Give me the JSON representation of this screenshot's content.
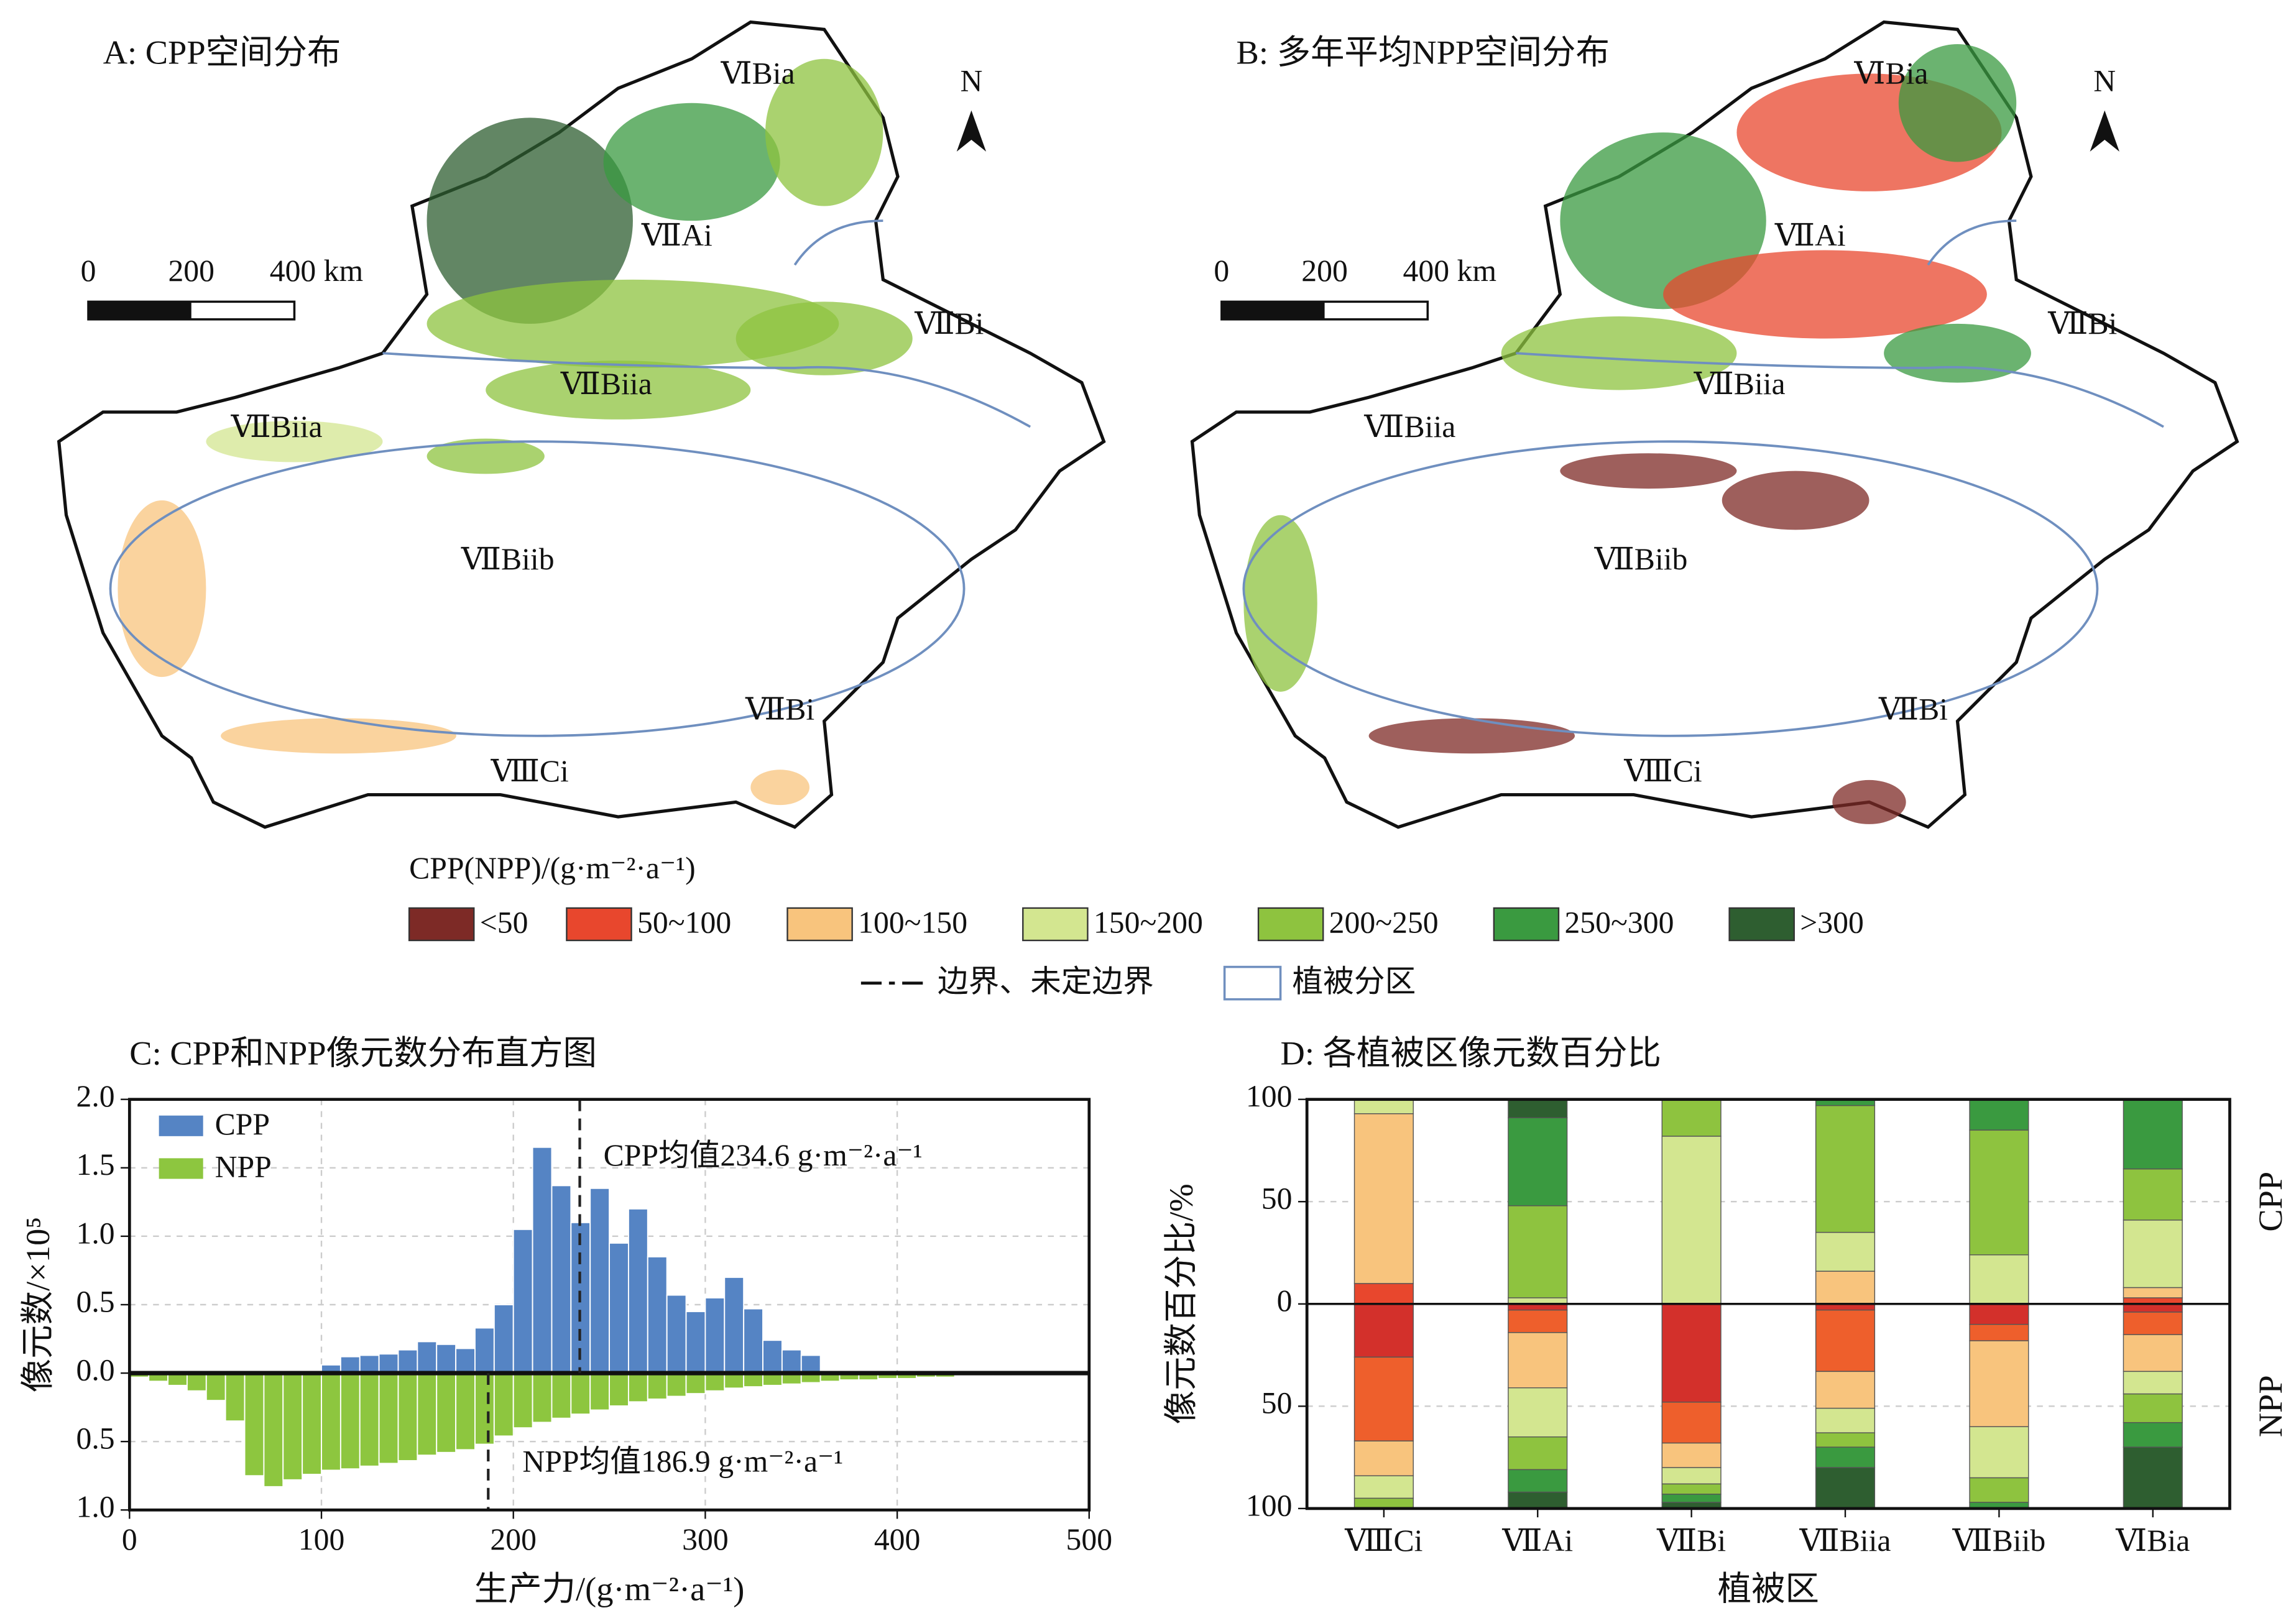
{
  "maps": [
    {
      "title": "A: CPP空间分布",
      "region_labels": [
        "ⅥBia",
        "ⅦAi",
        "ⅦBi",
        "ⅦBiia",
        "ⅦBiia",
        "ⅦBiib",
        "ⅦBi",
        "ⅧCi"
      ],
      "scale_labels": [
        "0",
        "200",
        "400 km"
      ],
      "north": "N"
    },
    {
      "title": "B: 多年平均NPP空间分布",
      "region_labels": [
        "ⅥBia",
        "ⅦAi",
        "ⅦBi",
        "ⅦBiia",
        "ⅦBiia",
        "ⅦBiib",
        "ⅦBi",
        "ⅧCi"
      ],
      "scale_labels": [
        "0",
        "200",
        "400 km"
      ],
      "north": "N"
    }
  ],
  "legend": {
    "title": "CPP(NPP)/(g·m⁻²·a⁻¹)",
    "classes": [
      {
        "label": "<50",
        "color": "#7d2a26"
      },
      {
        "label": "50~100",
        "color": "#e8472d"
      },
      {
        "label": "100~150",
        "color": "#f8c47d"
      },
      {
        "label": "150~200",
        "color": "#d3e690"
      },
      {
        "label": "200~250",
        "color": "#8ec33f"
      },
      {
        "label": "250~300",
        "color": "#3a9a40"
      },
      {
        "label": ">300",
        "color": "#2e5e30"
      }
    ],
    "boundary": "边界、未定边界",
    "zone": "植被分区"
  },
  "chart_data": [
    {
      "type": "histogram",
      "title": "C: CPP和NPP像元数分布直方图",
      "x_label": "生产力/(g·m⁻²·a⁻¹)",
      "y_label": "像元数/×10⁵",
      "bins": [
        0,
        10,
        20,
        30,
        40,
        50,
        60,
        70,
        80,
        90,
        100,
        110,
        120,
        130,
        140,
        150,
        160,
        170,
        180,
        190,
        200,
        210,
        220,
        230,
        240,
        250,
        260,
        270,
        280,
        290,
        300,
        310,
        320,
        330,
        340,
        350,
        360,
        370,
        380,
        390,
        400,
        410,
        420,
        430,
        440,
        450,
        460,
        470,
        480,
        490,
        500
      ],
      "series": [
        {
          "name": "CPP",
          "color": "#5584c4",
          "values": [
            null,
            null,
            null,
            null,
            null,
            null,
            null,
            null,
            null,
            null,
            0.06,
            0.12,
            0.13,
            0.14,
            0.17,
            0.23,
            0.21,
            0.18,
            0.33,
            0.5,
            1.05,
            1.65,
            1.37,
            1.1,
            1.35,
            0.95,
            1.2,
            0.85,
            0.57,
            0.45,
            0.55,
            0.7,
            0.47,
            0.24,
            0.17,
            0.13,
            null,
            null,
            null,
            null,
            null,
            null,
            null,
            null,
            null,
            null,
            null,
            null,
            null,
            null
          ]
        },
        {
          "name": "NPP",
          "color": "#8dc63f",
          "values": [
            -0.03,
            -0.06,
            -0.09,
            -0.13,
            -0.2,
            -0.35,
            -0.75,
            -0.83,
            -0.78,
            -0.74,
            -0.71,
            -0.7,
            -0.68,
            -0.66,
            -0.64,
            -0.6,
            -0.58,
            -0.56,
            -0.52,
            -0.46,
            -0.4,
            -0.36,
            -0.33,
            -0.3,
            -0.27,
            -0.24,
            -0.21,
            -0.19,
            -0.17,
            -0.15,
            -0.13,
            -0.11,
            -0.1,
            -0.09,
            -0.08,
            -0.07,
            -0.06,
            -0.05,
            -0.05,
            -0.04,
            -0.04,
            -0.03,
            -0.03,
            -0.02,
            -0.02,
            -0.02,
            -0.01,
            -0.01,
            -0.01,
            -0.01
          ]
        }
      ],
      "mean_lines": [
        {
          "series": "CPP",
          "value": 234.6,
          "label": "CPP均值234.6 g·m⁻²·a⁻¹"
        },
        {
          "series": "NPP",
          "value": 186.9,
          "label": "NPP均值186.9 g·m⁻²·a⁻¹"
        }
      ],
      "xlim": [
        0,
        500
      ],
      "xticks": [
        0,
        100,
        200,
        300,
        400,
        500
      ],
      "ylim": [
        -1,
        2
      ],
      "yticks": [
        {
          "value": 2,
          "label": "2.0"
        },
        1.5,
        {
          "value": 1,
          "label": "1.0"
        },
        0.5,
        {
          "value": 0,
          "label": "0.0"
        },
        {
          "value": -0.5,
          "label": "0.5"
        },
        {
          "value": -1,
          "label": "1.0"
        }
      ],
      "grid": true,
      "legend": "upper left"
    },
    {
      "type": "stacked_bar",
      "title": "D: 各植被区像元数百分比",
      "x_label": "植被区",
      "y_label": "像元数百分比/%",
      "categories": [
        "ⅧCi",
        "ⅦAi",
        "ⅦBi",
        "ⅦBiia",
        "ⅦBiib",
        "ⅥBia"
      ],
      "groups": [
        {
          "name": "CPP",
          "series": [
            {
              "name": "<50",
              "color": "#7d2a26",
              "values": [
                0,
                0,
                0,
                0,
                0,
                0
              ]
            },
            {
              "name": "50~100",
              "color": "#e8472d",
              "values": [
                10,
                0,
                0,
                0,
                0,
                3
              ]
            },
            {
              "name": "100~150",
              "color": "#f8c47d",
              "values": [
                83,
                0,
                0,
                16,
                0,
                5
              ]
            },
            {
              "name": "150~200",
              "color": "#d3e690",
              "values": [
                7,
                3,
                82,
                19,
                24,
                33
              ]
            },
            {
              "name": "200~250",
              "color": "#8ec33f",
              "values": [
                0,
                45,
                18,
                62,
                61,
                25
              ]
            },
            {
              "name": "250~300",
              "color": "#3a9a40",
              "values": [
                0,
                43,
                0,
                3,
                15,
                34
              ]
            },
            {
              "name": ">300",
              "color": "#2e5e30",
              "values": [
                0,
                9,
                0,
                0,
                0,
                0
              ]
            }
          ]
        },
        {
          "name": "NPP",
          "series": [
            {
              "name": "<50",
              "color": "#d3302b",
              "values": [
                -26,
                -3,
                -48,
                -3,
                -10,
                -4
              ]
            },
            {
              "name": "50~100",
              "color": "#ee5f2c",
              "values": [
                -41,
                -11,
                -20,
                -30,
                -8,
                -11
              ]
            },
            {
              "name": "100~150",
              "color": "#f8c47d",
              "values": [
                -17,
                -27,
                -12,
                -18,
                -42,
                -18
              ]
            },
            {
              "name": "150~200",
              "color": "#d3e690",
              "values": [
                -11,
                -24,
                -8,
                -12,
                -25,
                -11
              ]
            },
            {
              "name": "200~250",
              "color": "#8ec33f",
              "values": [
                -5,
                -16,
                -5,
                -7,
                -12,
                -14
              ]
            },
            {
              "name": "250~300",
              "color": "#3a9a40",
              "values": [
                0,
                -11,
                -4,
                -10,
                -3,
                -12
              ]
            },
            {
              "name": ">300",
              "color": "#2e5e30",
              "values": [
                0,
                -8,
                -3,
                -20,
                0,
                -30
              ]
            }
          ]
        }
      ],
      "ylim": [
        -100,
        100
      ],
      "yticks": [
        100,
        50,
        0,
        {
          "value": -50,
          "label": "50"
        },
        {
          "value": -100,
          "label": "100"
        }
      ],
      "grid": true
    }
  ]
}
